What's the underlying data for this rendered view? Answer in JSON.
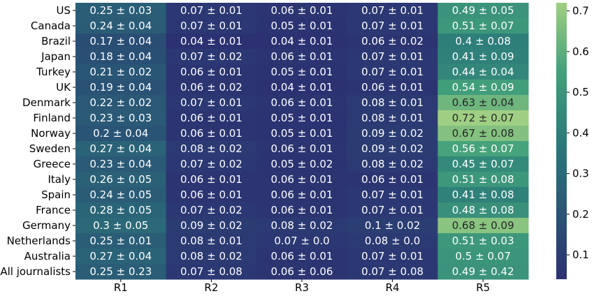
{
  "chart_data": {
    "type": "heatmap",
    "title": "",
    "xlabel": "",
    "ylabel": "",
    "columns": [
      "R1",
      "R2",
      "R3",
      "R4",
      "R5"
    ],
    "rows": [
      "US",
      "Canada",
      "Brazil",
      "Japan",
      "Turkey",
      "UK",
      "Denmark",
      "Finland",
      "Norway",
      "Sweden",
      "Greece",
      "Italy",
      "Spain",
      "France",
      "Germany",
      "Netherlands",
      "Australia",
      "All journalists"
    ],
    "values": [
      [
        0.25,
        0.07,
        0.06,
        0.07,
        0.49
      ],
      [
        0.24,
        0.07,
        0.05,
        0.07,
        0.51
      ],
      [
        0.17,
        0.04,
        0.04,
        0.06,
        0.4
      ],
      [
        0.18,
        0.07,
        0.06,
        0.07,
        0.41
      ],
      [
        0.21,
        0.06,
        0.05,
        0.07,
        0.44
      ],
      [
        0.19,
        0.06,
        0.04,
        0.06,
        0.54
      ],
      [
        0.22,
        0.07,
        0.06,
        0.08,
        0.63
      ],
      [
        0.23,
        0.06,
        0.05,
        0.08,
        0.72
      ],
      [
        0.2,
        0.06,
        0.05,
        0.09,
        0.67
      ],
      [
        0.27,
        0.08,
        0.06,
        0.09,
        0.56
      ],
      [
        0.23,
        0.07,
        0.05,
        0.08,
        0.45
      ],
      [
        0.26,
        0.06,
        0.06,
        0.06,
        0.51
      ],
      [
        0.24,
        0.06,
        0.06,
        0.07,
        0.41
      ],
      [
        0.28,
        0.07,
        0.06,
        0.07,
        0.48
      ],
      [
        0.3,
        0.09,
        0.08,
        0.1,
        0.68
      ],
      [
        0.25,
        0.08,
        0.07,
        0.08,
        0.51
      ],
      [
        0.27,
        0.08,
        0.06,
        0.07,
        0.5
      ],
      [
        0.25,
        0.07,
        0.06,
        0.07,
        0.49
      ]
    ],
    "annotations": [
      [
        "0.25 ± 0.03",
        "0.07 ± 0.01",
        "0.06 ± 0.01",
        "0.07 ± 0.01",
        "0.49 ± 0.05"
      ],
      [
        "0.24 ± 0.04",
        "0.07 ± 0.01",
        "0.05 ± 0.01",
        "0.07 ± 0.01",
        "0.51 ± 0.07"
      ],
      [
        "0.17 ± 0.04",
        "0.04 ± 0.01",
        "0.04 ± 0.01",
        "0.06 ± 0.02",
        "0.4 ± 0.08"
      ],
      [
        "0.18 ± 0.04",
        "0.07 ± 0.02",
        "0.06 ± 0.01",
        "0.07 ± 0.01",
        "0.41 ± 0.09"
      ],
      [
        "0.21 ± 0.02",
        "0.06 ± 0.01",
        "0.05 ± 0.01",
        "0.07 ± 0.01",
        "0.44 ± 0.04"
      ],
      [
        "0.19 ± 0.04",
        "0.06 ± 0.02",
        "0.04 ± 0.01",
        "0.06 ± 0.01",
        "0.54 ± 0.09"
      ],
      [
        "0.22 ± 0.02",
        "0.07 ± 0.01",
        "0.06 ± 0.01",
        "0.08 ± 0.01",
        "0.63 ± 0.04"
      ],
      [
        "0.23 ± 0.03",
        "0.06 ± 0.01",
        "0.05 ± 0.01",
        "0.08 ± 0.01",
        "0.72 ± 0.07"
      ],
      [
        "0.2 ± 0.04",
        "0.06 ± 0.01",
        "0.05 ± 0.01",
        "0.09 ± 0.02",
        "0.67 ± 0.08"
      ],
      [
        "0.27 ± 0.04",
        "0.08 ± 0.02",
        "0.06 ± 0.01",
        "0.09 ± 0.02",
        "0.56 ± 0.07"
      ],
      [
        "0.23 ± 0.04",
        "0.07 ± 0.02",
        "0.05 ± 0.02",
        "0.08 ± 0.02",
        "0.45 ± 0.07"
      ],
      [
        "0.26 ± 0.05",
        "0.06 ± 0.01",
        "0.06 ± 0.01",
        "0.06 ± 0.01",
        "0.51 ± 0.08"
      ],
      [
        "0.24 ± 0.05",
        "0.06 ± 0.01",
        "0.06 ± 0.01",
        "0.07 ± 0.01",
        "0.41 ± 0.08"
      ],
      [
        "0.28 ± 0.05",
        "0.07 ± 0.02",
        "0.06 ± 0.01",
        "0.07 ± 0.01",
        "0.48 ± 0.08"
      ],
      [
        "0.3 ± 0.05",
        "0.09 ± 0.02",
        "0.08 ± 0.02",
        "0.1 ± 0.02",
        "0.68 ± 0.09"
      ],
      [
        "0.25 ± 0.01",
        "0.08 ± 0.01",
        "0.07 ± 0.0",
        "0.08 ± 0.0",
        "0.51 ± 0.03"
      ],
      [
        "0.27 ± 0.04",
        "0.08 ± 0.02",
        "0.06 ± 0.01",
        "0.07 ± 0.01",
        "0.5 ± 0.07"
      ],
      [
        "0.25 ± 0.23",
        "0.07 ± 0.08",
        "0.06 ± 0.06",
        "0.07 ± 0.08",
        "0.49 ± 0.42"
      ]
    ],
    "colorbar": {
      "min": 0.04,
      "max": 0.72,
      "ticks": [
        0.1,
        0.2,
        0.3,
        0.4,
        0.5,
        0.6,
        0.7
      ],
      "tick_labels": [
        "0.1",
        "0.2",
        "0.3",
        "0.4",
        "0.5",
        "0.6",
        "0.7"
      ],
      "colormap": "crest",
      "colors": [
        "#2c3172",
        "#2a5675",
        "#2b7a7a",
        "#42a07a",
        "#9fcf83"
      ]
    },
    "grid": false,
    "legend": "colorbar-right"
  }
}
